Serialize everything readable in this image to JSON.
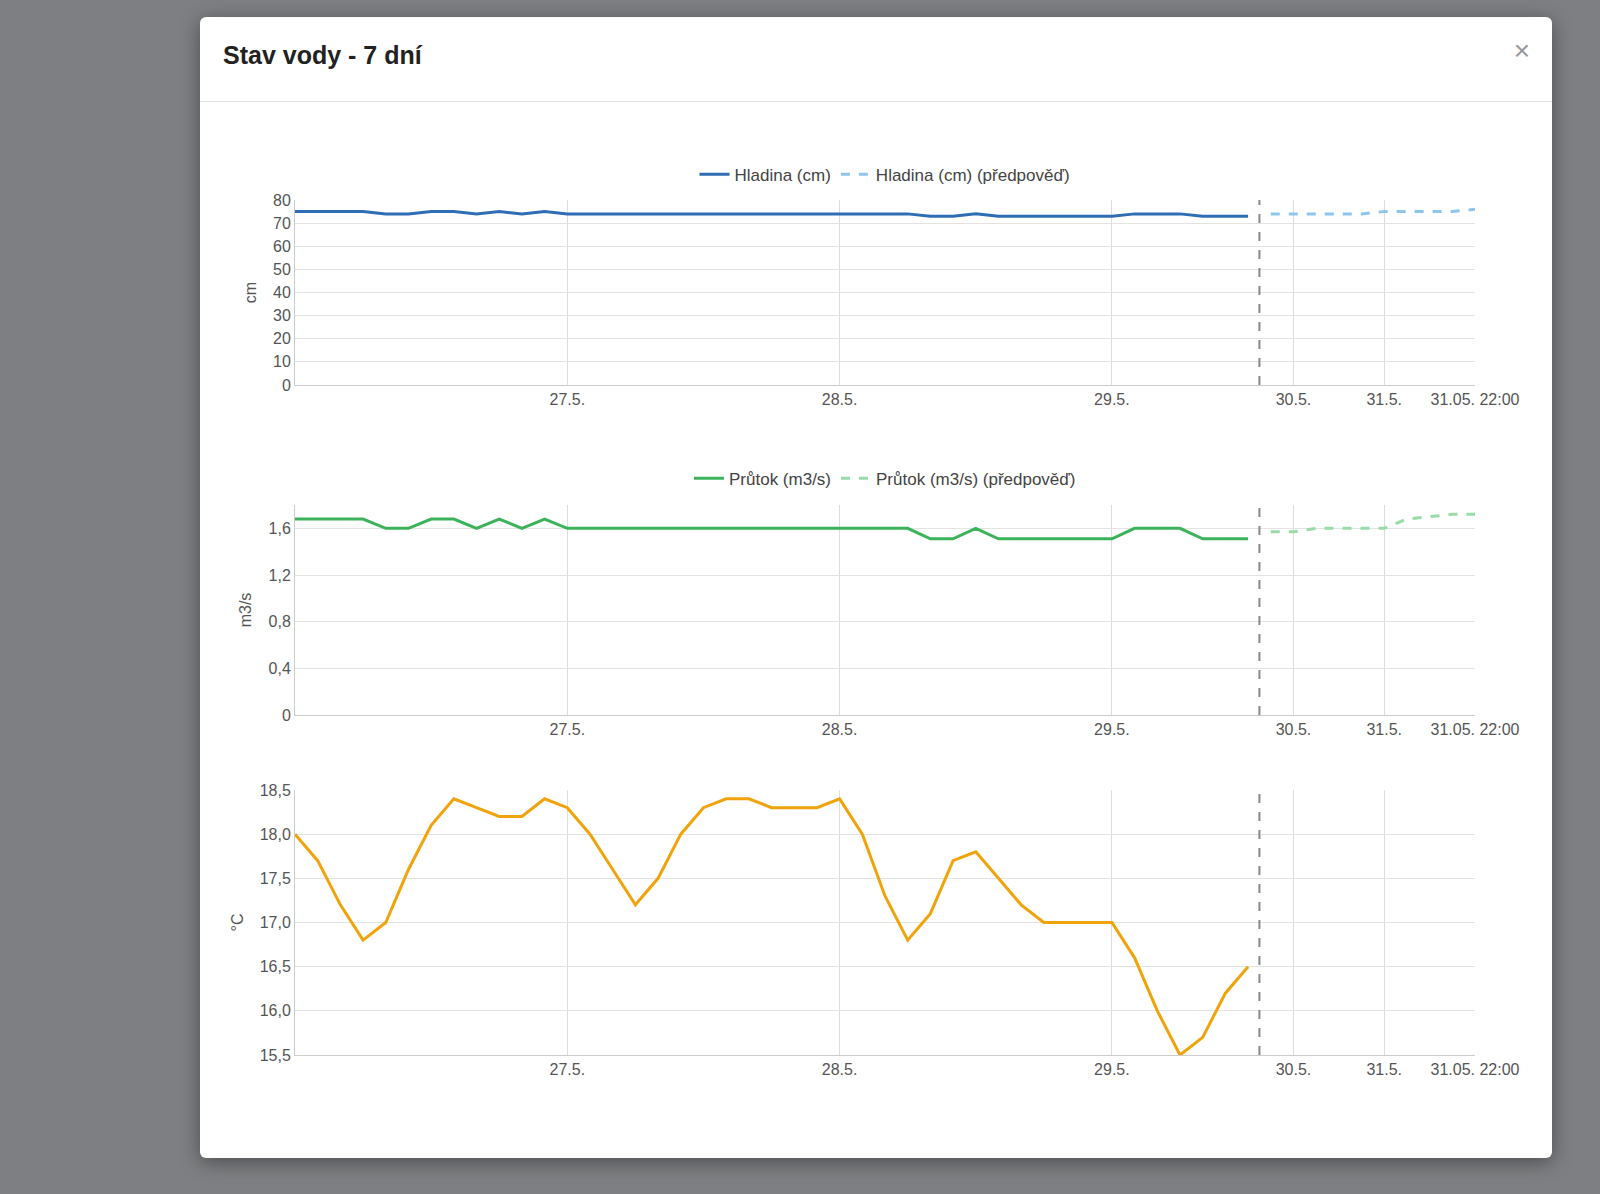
{
  "title": "Stav vody - 7 dní",
  "close_button": "×",
  "chart_data": [
    {
      "type": "line",
      "ylabel": "cm",
      "legend": "top",
      "grid": true,
      "categories": [
        null,
        null,
        null,
        null,
        null,
        null,
        null,
        null,
        null,
        null,
        null,
        null,
        "27.5.",
        null,
        null,
        null,
        null,
        null,
        null,
        null,
        null,
        null,
        null,
        null,
        "28.5.",
        null,
        null,
        null,
        null,
        null,
        null,
        null,
        null,
        null,
        null,
        null,
        "29.5.",
        null,
        null,
        null,
        null,
        null,
        null,
        null,
        "30.5.",
        null,
        null,
        null,
        "31.5.",
        null,
        null,
        null,
        "31.05. 22:00"
      ],
      "ylim": [
        0,
        80
      ],
      "yticks": [
        0,
        10,
        20,
        30,
        40,
        50,
        60,
        70,
        80
      ],
      "series": [
        {
          "name": "Hladina (cm)",
          "color": "#2f6db5",
          "line_style": "solid",
          "values": [
            75,
            75,
            75,
            75,
            74,
            74,
            75,
            75,
            74,
            75,
            74,
            75,
            74,
            74,
            74,
            74,
            74,
            74,
            74,
            74,
            74,
            74,
            74,
            74,
            74,
            74,
            74,
            74,
            73,
            73,
            74,
            73,
            73,
            73,
            73,
            73,
            73,
            74,
            74,
            74,
            73,
            73,
            73,
            null,
            null,
            null,
            null,
            null,
            null,
            null,
            null,
            null,
            null
          ]
        },
        {
          "name": "Hladina (cm) (předpověď)",
          "color": "#8ec5ee",
          "line_style": "dashed",
          "values": [
            null,
            null,
            null,
            null,
            null,
            null,
            null,
            null,
            null,
            null,
            null,
            null,
            null,
            null,
            null,
            null,
            null,
            null,
            null,
            null,
            null,
            null,
            null,
            null,
            null,
            null,
            null,
            null,
            null,
            null,
            null,
            null,
            null,
            null,
            null,
            null,
            null,
            null,
            null,
            null,
            null,
            null,
            null,
            74,
            74,
            74,
            74,
            74,
            75,
            75,
            75,
            75,
            76
          ]
        }
      ]
    },
    {
      "type": "line",
      "ylabel": "m3/s",
      "legend": "top",
      "grid": true,
      "categories": [
        null,
        null,
        null,
        null,
        null,
        null,
        null,
        null,
        null,
        null,
        null,
        null,
        "27.5.",
        null,
        null,
        null,
        null,
        null,
        null,
        null,
        null,
        null,
        null,
        null,
        "28.5.",
        null,
        null,
        null,
        null,
        null,
        null,
        null,
        null,
        null,
        null,
        null,
        "29.5.",
        null,
        null,
        null,
        null,
        null,
        null,
        null,
        "30.5.",
        null,
        null,
        null,
        "31.5.",
        null,
        null,
        null,
        "31.05. 22:00"
      ],
      "ylim": [
        0,
        1.8
      ],
      "yticks": [
        0,
        {
          "value": 0.4,
          "label": "0,4"
        },
        {
          "value": 0.8,
          "label": "0,8"
        },
        {
          "value": 1.2,
          "label": "1,2"
        },
        {
          "value": 1.6,
          "label": "1,6"
        }
      ],
      "series": [
        {
          "name": "Průtok (m3/s)",
          "color": "#3cb35a",
          "line_style": "solid",
          "values": [
            1.68,
            1.68,
            1.68,
            1.68,
            1.6,
            1.6,
            1.68,
            1.68,
            1.6,
            1.68,
            1.6,
            1.68,
            1.6,
            1.6,
            1.6,
            1.6,
            1.6,
            1.6,
            1.6,
            1.6,
            1.6,
            1.6,
            1.6,
            1.6,
            1.6,
            1.6,
            1.6,
            1.6,
            1.51,
            1.51,
            1.6,
            1.51,
            1.51,
            1.51,
            1.51,
            1.51,
            1.51,
            1.6,
            1.6,
            1.6,
            1.51,
            1.51,
            1.51,
            null,
            null,
            null,
            null,
            null,
            null,
            null,
            null,
            null,
            null
          ]
        },
        {
          "name": "Průtok (m3/s) (předpověď)",
          "color": "#98dca8",
          "line_style": "dashed",
          "values": [
            null,
            null,
            null,
            null,
            null,
            null,
            null,
            null,
            null,
            null,
            null,
            null,
            null,
            null,
            null,
            null,
            null,
            null,
            null,
            null,
            null,
            null,
            null,
            null,
            null,
            null,
            null,
            null,
            null,
            null,
            null,
            null,
            null,
            null,
            null,
            null,
            null,
            null,
            null,
            null,
            null,
            null,
            null,
            1.57,
            1.57,
            1.6,
            1.6,
            1.6,
            1.6,
            1.68,
            1.7,
            1.72,
            1.72
          ]
        }
      ]
    },
    {
      "type": "line",
      "ylabel": "°C",
      "grid": true,
      "categories": [
        null,
        null,
        null,
        null,
        null,
        null,
        null,
        null,
        null,
        null,
        null,
        null,
        "27.5.",
        null,
        null,
        null,
        null,
        null,
        null,
        null,
        null,
        null,
        null,
        null,
        "28.5.",
        null,
        null,
        null,
        null,
        null,
        null,
        null,
        null,
        null,
        null,
        null,
        "29.5.",
        null,
        null,
        null,
        null,
        null,
        null,
        null,
        "30.5.",
        null,
        null,
        null,
        "31.5.",
        null,
        null,
        null,
        "31.05. 22:00"
      ],
      "ylim": [
        15.5,
        18.5
      ],
      "yticks": [
        {
          "value": 15.5,
          "label": "15,5"
        },
        {
          "value": 16,
          "label": "16,0"
        },
        {
          "value": 16.5,
          "label": "16,5"
        },
        {
          "value": 17,
          "label": "17,0"
        },
        {
          "value": 17.5,
          "label": "17,5"
        },
        {
          "value": 18,
          "label": "18,0"
        },
        {
          "value": 18.5,
          "label": "18,5"
        }
      ],
      "series": [
        {
          "color": "#f0a30a",
          "line_style": "solid",
          "values": [
            18.0,
            17.7,
            17.2,
            16.8,
            17.0,
            17.6,
            18.1,
            18.4,
            18.3,
            18.2,
            18.2,
            18.4,
            18.3,
            18.0,
            17.6,
            17.2,
            17.5,
            18.0,
            18.3,
            18.4,
            18.4,
            18.3,
            18.3,
            18.3,
            18.4,
            18.0,
            17.3,
            16.8,
            17.1,
            17.7,
            17.8,
            17.5,
            17.2,
            17.0,
            17.0,
            17.0,
            17.0,
            16.6,
            16.0,
            15.5,
            15.7,
            16.2,
            16.5,
            null,
            null,
            null,
            null,
            null,
            null,
            null,
            null,
            null,
            null
          ]
        }
      ]
    }
  ]
}
